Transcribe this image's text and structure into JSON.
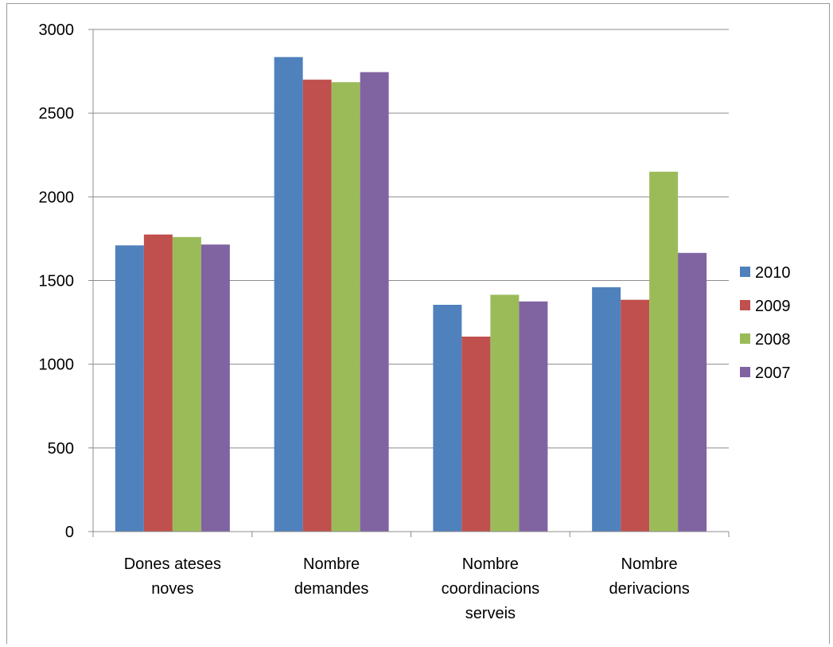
{
  "chart_data": {
    "type": "bar",
    "categories": [
      [
        "Dones ateses",
        "noves"
      ],
      [
        "Nombre",
        "demandes"
      ],
      [
        "Nombre",
        "coordinacions",
        "serveis"
      ],
      [
        "Nombre",
        "derivacions"
      ]
    ],
    "series": [
      {
        "name": "2010",
        "color": "#4f81bd",
        "values": [
          1710,
          2835,
          1355,
          1460
        ]
      },
      {
        "name": "2009",
        "color": "#c0504d",
        "values": [
          1775,
          2700,
          1165,
          1385
        ]
      },
      {
        "name": "2008",
        "color": "#9bbb59",
        "values": [
          1760,
          2685,
          1415,
          2150
        ]
      },
      {
        "name": "2007",
        "color": "#8064a2",
        "values": [
          1715,
          2745,
          1375,
          1665
        ]
      }
    ],
    "ylim": [
      0,
      3000
    ],
    "yticks": [
      "0",
      "500",
      "1000",
      "1500",
      "2000",
      "2500",
      "3000"
    ],
    "grid": true,
    "legend": "right"
  }
}
